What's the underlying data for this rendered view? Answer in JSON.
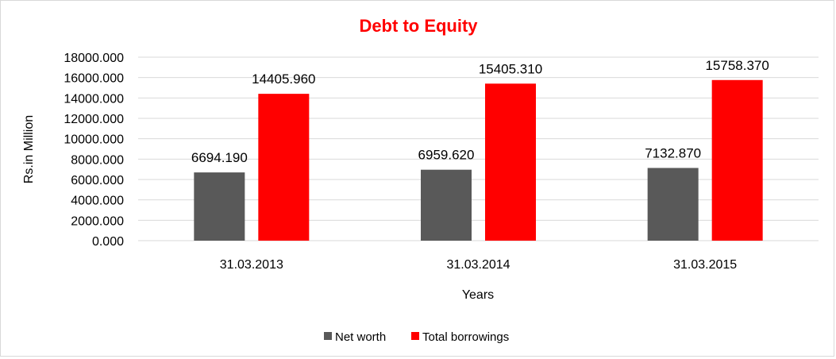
{
  "chart_data": {
    "type": "bar",
    "title": "Debt to Equity",
    "xlabel": "Years",
    "ylabel": "Rs.in Million",
    "categories": [
      "31.03.2013",
      "31.03.2014",
      "31.03.2015"
    ],
    "series": [
      {
        "name": "Net worth",
        "values": [
          6694.19,
          6959.62,
          7132.87
        ],
        "labels": [
          "6694.190",
          "6959.620",
          "7132.870"
        ],
        "color": "#595959"
      },
      {
        "name": "Total borrowings",
        "values": [
          14405.96,
          15405.31,
          15758.37
        ],
        "labels": [
          "14405.960",
          "15405.310",
          "15758.370"
        ],
        "color": "#ff0000"
      }
    ],
    "ylim": [
      0,
      18000
    ],
    "yticks": [
      0,
      2000,
      4000,
      6000,
      8000,
      10000,
      12000,
      14000,
      16000,
      18000
    ],
    "ytick_labels": [
      "0.000",
      "2000.000",
      "4000.000",
      "6000.000",
      "8000.000",
      "10000.000",
      "12000.000",
      "14000.000",
      "16000.000",
      "18000.000"
    ],
    "grid": true,
    "legend_position": "bottom",
    "title_color": "#ff0000"
  }
}
